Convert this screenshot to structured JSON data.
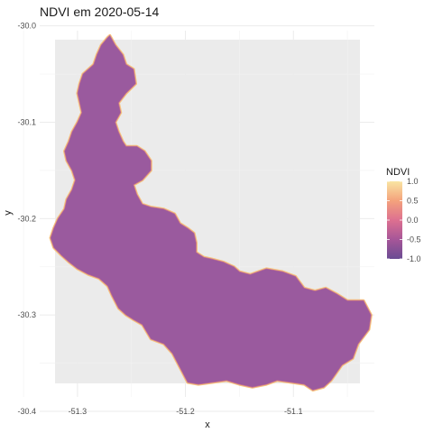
{
  "chart_data": {
    "type": "heatmap",
    "title": "NDVI em 2020-05-14",
    "xlabel": "x",
    "ylabel": "y",
    "xlim": [
      -51.335,
      -51.025
    ],
    "ylim": [
      -30.385,
      -30.005
    ],
    "x_ticks": [
      -51.3,
      -51.2,
      -51.1
    ],
    "x_tick_labels": [
      "-51.3",
      "-51.2",
      "-51.1"
    ],
    "y_ticks": [
      -30.0,
      -30.1,
      -30.2,
      -30.3,
      -30.4
    ],
    "y_tick_labels": [
      "-30.0",
      "-30.1",
      "-30.2",
      "-30.3",
      "-30.4"
    ],
    "grid": true,
    "panel_background": "#ebebeb",
    "legend": {
      "title": "NDVI",
      "position": "right",
      "range": [
        -1.0,
        1.0
      ],
      "ticks": [
        1.0,
        0.5,
        0.0,
        -0.5,
        -1.0
      ],
      "tick_labels": [
        "1.0",
        "0.5",
        "0.0",
        "-0.5",
        "-1.0"
      ],
      "colors": [
        "#f9e5a3",
        "#f4a27c",
        "#dd7090",
        "#a65698",
        "#6a4c93"
      ]
    },
    "fill_color": "#9a5a9e",
    "edge_color": "#f6c37d",
    "region_outline": [
      [
        -51.27,
        -30.01
      ],
      [
        -51.265,
        -30.02
      ],
      [
        -51.258,
        -30.03
      ],
      [
        -51.255,
        -30.04
      ],
      [
        -51.248,
        -30.045
      ],
      [
        -51.246,
        -30.06
      ],
      [
        -51.255,
        -30.07
      ],
      [
        -51.262,
        -30.08
      ],
      [
        -51.26,
        -30.09
      ],
      [
        -51.265,
        -30.1
      ],
      [
        -51.262,
        -30.11
      ],
      [
        -51.258,
        -30.12
      ],
      [
        -51.255,
        -30.125
      ],
      [
        -51.245,
        -30.125
      ],
      [
        -51.238,
        -30.13
      ],
      [
        -51.232,
        -30.14
      ],
      [
        -51.232,
        -30.15
      ],
      [
        -51.24,
        -30.16
      ],
      [
        -51.248,
        -30.165
      ],
      [
        -51.245,
        -30.175
      ],
      [
        -51.24,
        -30.185
      ],
      [
        -51.232,
        -30.188
      ],
      [
        -51.22,
        -30.19
      ],
      [
        -51.21,
        -30.195
      ],
      [
        -51.205,
        -30.205
      ],
      [
        -51.198,
        -30.21
      ],
      [
        -51.192,
        -30.215
      ],
      [
        -51.19,
        -30.225
      ],
      [
        -51.19,
        -30.235
      ],
      [
        -51.183,
        -30.24
      ],
      [
        -51.175,
        -30.242
      ],
      [
        -51.165,
        -30.245
      ],
      [
        -51.155,
        -30.25
      ],
      [
        -51.15,
        -30.255
      ],
      [
        -51.14,
        -30.258
      ],
      [
        -51.125,
        -30.252
      ],
      [
        -51.11,
        -30.255
      ],
      [
        -51.098,
        -30.26
      ],
      [
        -51.09,
        -30.272
      ],
      [
        -51.08,
        -30.275
      ],
      [
        -51.07,
        -30.272
      ],
      [
        -51.06,
        -30.278
      ],
      [
        -51.05,
        -30.285
      ],
      [
        -51.035,
        -30.285
      ],
      [
        -51.028,
        -30.3
      ],
      [
        -51.03,
        -30.315
      ],
      [
        -51.04,
        -30.33
      ],
      [
        -51.045,
        -30.345
      ],
      [
        -51.055,
        -30.352
      ],
      [
        -51.06,
        -30.36
      ],
      [
        -51.065,
        -30.368
      ],
      [
        -51.072,
        -30.375
      ],
      [
        -51.082,
        -30.378
      ],
      [
        -51.09,
        -30.372
      ],
      [
        -51.102,
        -30.37
      ],
      [
        -51.115,
        -30.368
      ],
      [
        -51.125,
        -30.372
      ],
      [
        -51.138,
        -30.375
      ],
      [
        -51.15,
        -30.372
      ],
      [
        -51.162,
        -30.368
      ],
      [
        -51.175,
        -30.37
      ],
      [
        -51.188,
        -30.372
      ],
      [
        -51.198,
        -30.37
      ],
      [
        -51.205,
        -30.355
      ],
      [
        -51.212,
        -30.34
      ],
      [
        -51.22,
        -30.33
      ],
      [
        -51.232,
        -30.325
      ],
      [
        -51.24,
        -30.31
      ],
      [
        -51.248,
        -30.305
      ],
      [
        -51.255,
        -30.3
      ],
      [
        -51.262,
        -30.293
      ],
      [
        -51.268,
        -30.28
      ],
      [
        -51.272,
        -30.27
      ],
      [
        -51.28,
        -30.262
      ],
      [
        -51.29,
        -30.258
      ],
      [
        -51.3,
        -30.252
      ],
      [
        -51.308,
        -30.245
      ],
      [
        -51.315,
        -30.238
      ],
      [
        -51.322,
        -30.23
      ],
      [
        -51.325,
        -30.22
      ],
      [
        -51.322,
        -30.21
      ],
      [
        -51.318,
        -30.2
      ],
      [
        -51.312,
        -30.19
      ],
      [
        -51.31,
        -30.18
      ],
      [
        -51.305,
        -30.17
      ],
      [
        -51.302,
        -30.16
      ],
      [
        -51.305,
        -30.15
      ],
      [
        -51.31,
        -30.14
      ],
      [
        -51.312,
        -30.13
      ],
      [
        -51.308,
        -30.12
      ],
      [
        -51.305,
        -30.11
      ],
      [
        -51.3,
        -30.1
      ],
      [
        -51.296,
        -30.09
      ],
      [
        -51.298,
        -30.08
      ],
      [
        -51.3,
        -30.07
      ],
      [
        -51.298,
        -30.06
      ],
      [
        -51.295,
        -30.05
      ],
      [
        -51.29,
        -30.045
      ],
      [
        -51.285,
        -30.04
      ],
      [
        -51.282,
        -30.03
      ],
      [
        -51.278,
        -30.02
      ],
      [
        -51.272,
        -30.012
      ]
    ]
  }
}
